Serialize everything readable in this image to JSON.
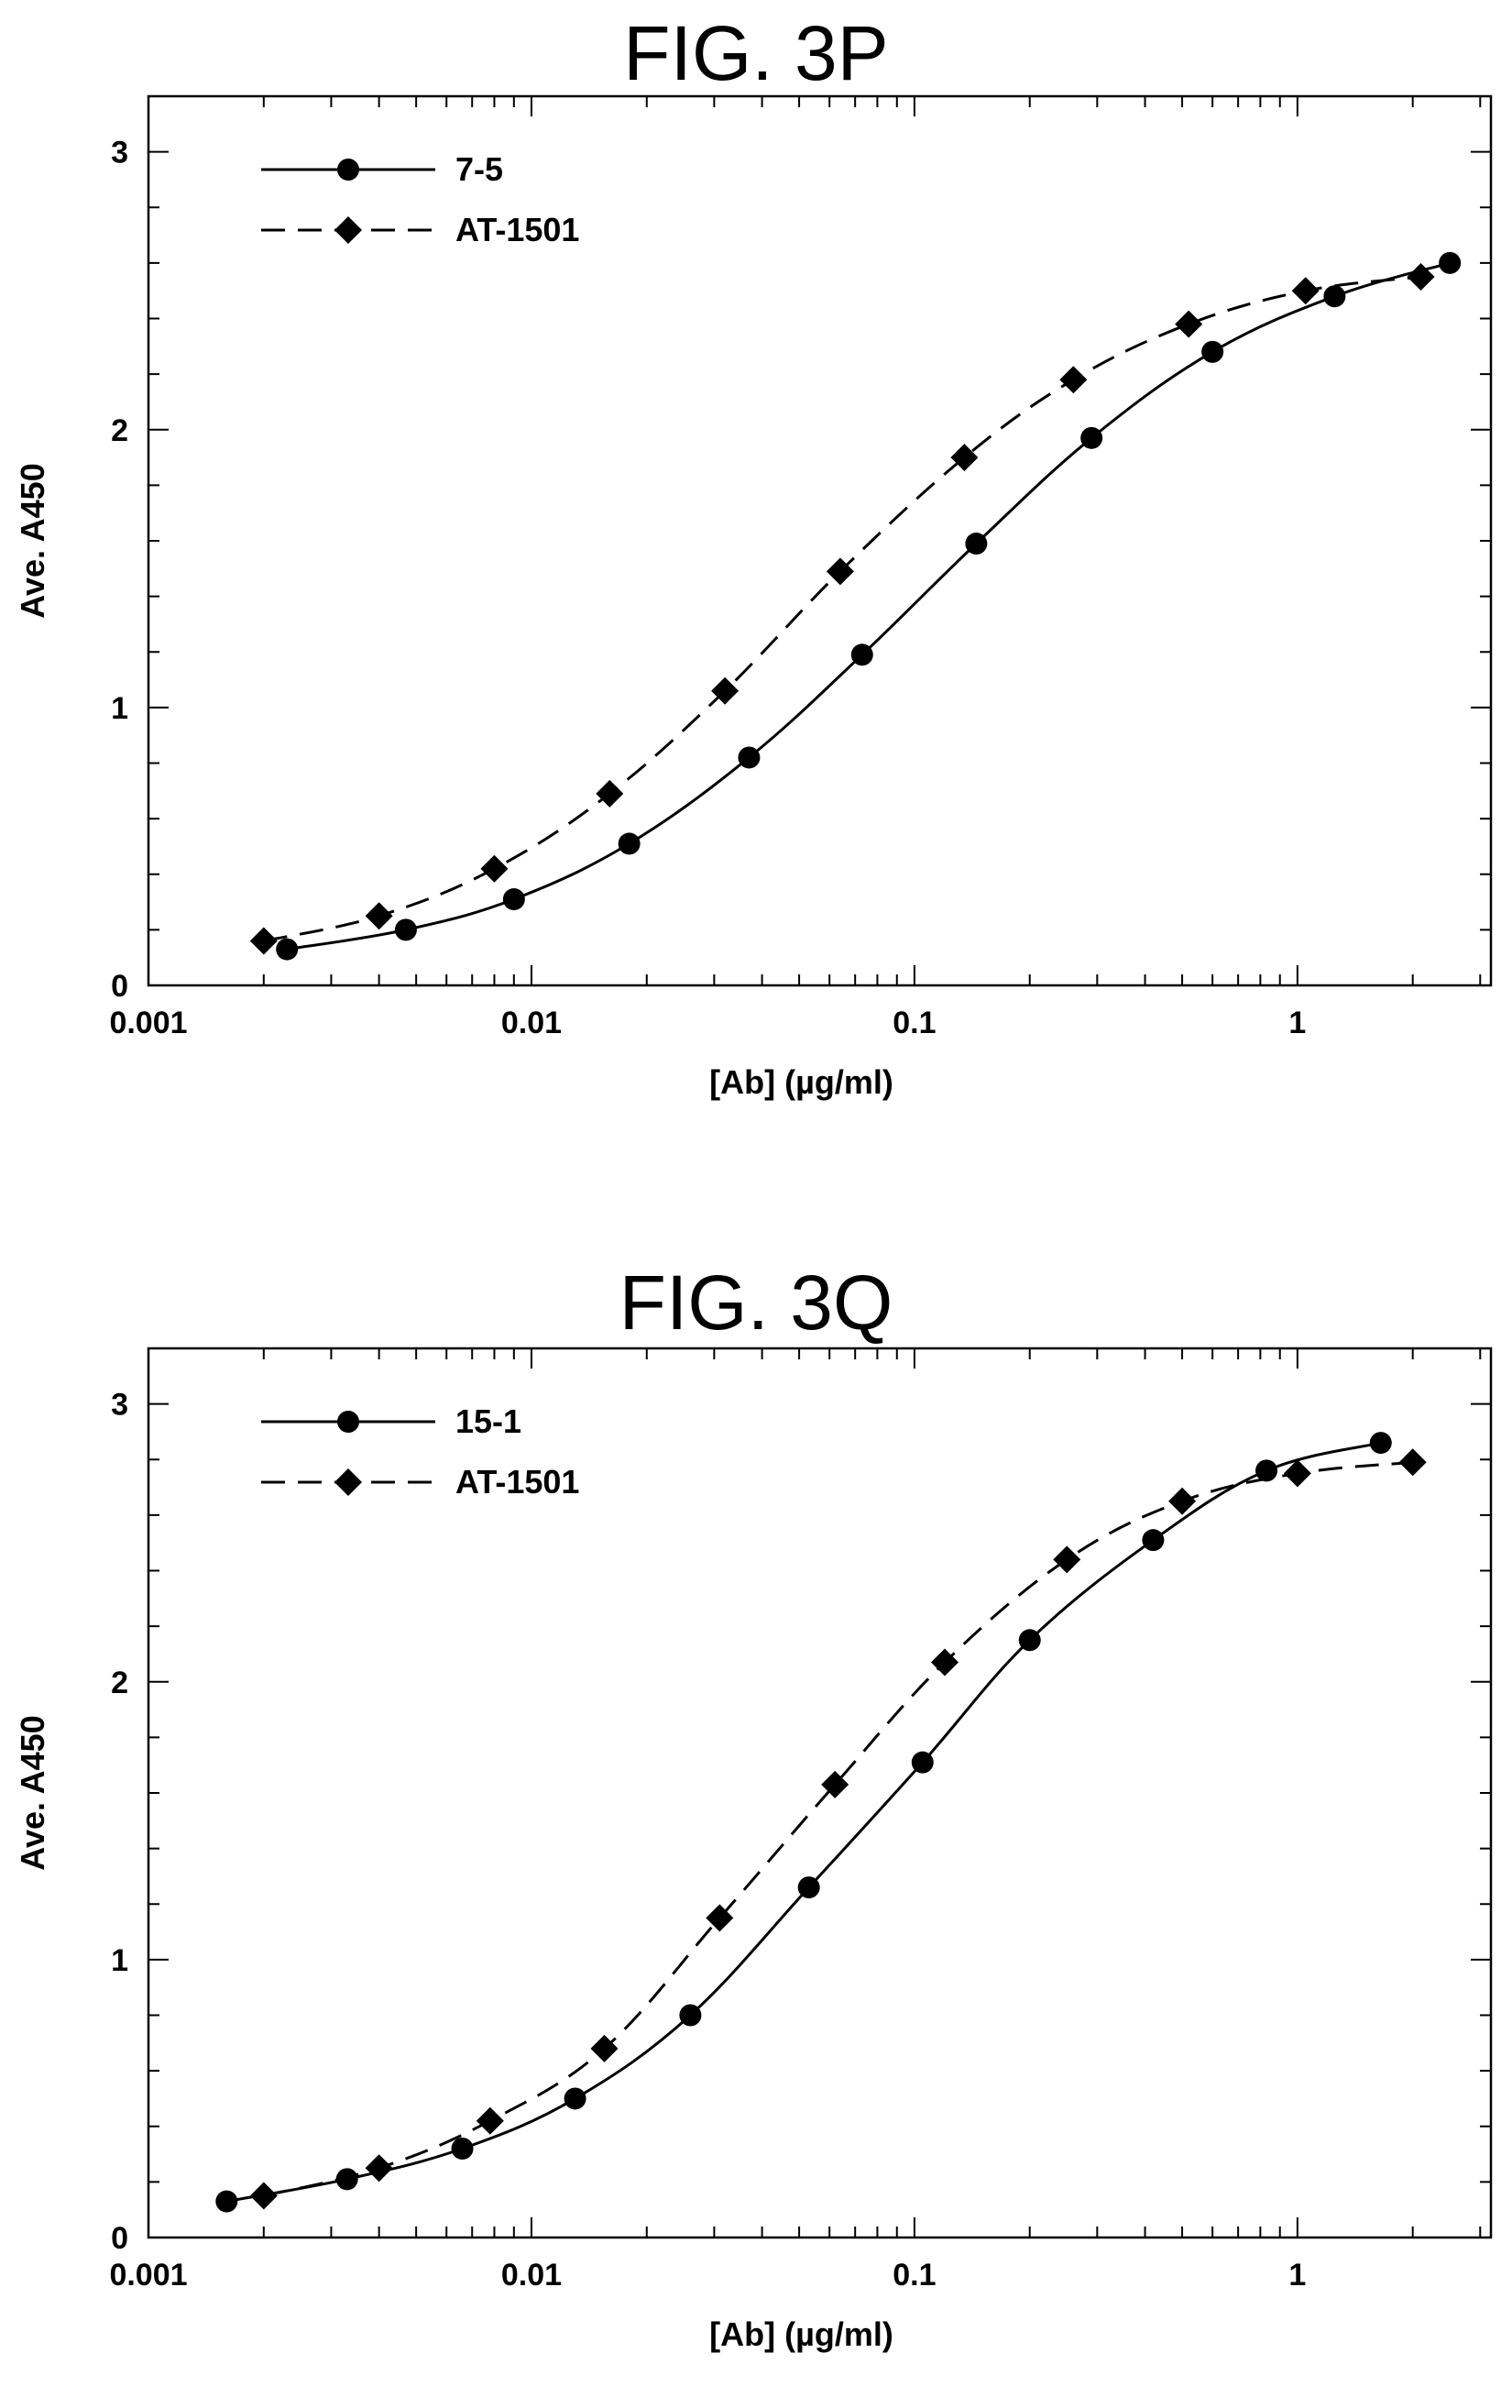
{
  "chart_data": [
    {
      "type": "line",
      "title": "FIG. 3P",
      "xlabel": "[Ab]  (µg/ml)",
      "ylabel": "Ave. A450",
      "xscale": "log",
      "xlim": [
        0.001,
        3.2
      ],
      "ylim": [
        0,
        3.2
      ],
      "xticks": [
        0.001,
        0.01,
        0.1,
        1
      ],
      "xtick_labels": [
        "0.001",
        "0.01",
        "0.1",
        "1"
      ],
      "yticks": [
        0,
        1,
        2,
        3
      ],
      "ytick_labels": [
        "0",
        "1",
        "2",
        "3"
      ],
      "legend_position": "top-left",
      "series": [
        {
          "name": "7-5",
          "marker": "circle",
          "line": "solid",
          "x": [
            0.0023,
            0.0047,
            0.009,
            0.018,
            0.037,
            0.073,
            0.145,
            0.29,
            0.6,
            1.25,
            2.5
          ],
          "y": [
            0.13,
            0.2,
            0.31,
            0.51,
            0.82,
            1.19,
            1.59,
            1.97,
            2.28,
            2.48,
            2.6
          ]
        },
        {
          "name": "AT-1501",
          "marker": "diamond",
          "line": "dashed",
          "x": [
            0.002,
            0.004,
            0.008,
            0.016,
            0.032,
            0.064,
            0.135,
            0.26,
            0.52,
            1.05,
            2.1
          ],
          "y": [
            0.16,
            0.25,
            0.42,
            0.69,
            1.06,
            1.49,
            1.9,
            2.18,
            2.38,
            2.5,
            2.55
          ]
        }
      ]
    },
    {
      "type": "line",
      "title": "FIG. 3Q",
      "xlabel": "[Ab]  (µg/ml)",
      "ylabel": "Ave. A450",
      "xscale": "log",
      "xlim": [
        0.001,
        3.2
      ],
      "ylim": [
        0,
        3.2
      ],
      "xticks": [
        0.001,
        0.01,
        0.1,
        1
      ],
      "xtick_labels": [
        "0.001",
        "0.01",
        "0.1",
        "1"
      ],
      "yticks": [
        0,
        1,
        2,
        3
      ],
      "ytick_labels": [
        "0",
        "1",
        "2",
        "3"
      ],
      "legend_position": "top-left",
      "series": [
        {
          "name": "15-1",
          "marker": "circle",
          "line": "solid",
          "x": [
            0.0016,
            0.0033,
            0.0066,
            0.013,
            0.026,
            0.053,
            0.105,
            0.2,
            0.42,
            0.83,
            1.65
          ],
          "y": [
            0.13,
            0.21,
            0.32,
            0.5,
            0.8,
            1.26,
            1.71,
            2.15,
            2.51,
            2.76,
            2.86
          ]
        },
        {
          "name": "AT-1501",
          "marker": "diamond",
          "line": "dashed",
          "x": [
            0.002,
            0.004,
            0.0078,
            0.0155,
            0.031,
            0.062,
            0.12,
            0.25,
            0.5,
            1.0,
            2.0
          ],
          "y": [
            0.15,
            0.25,
            0.42,
            0.68,
            1.15,
            1.63,
            2.07,
            2.44,
            2.65,
            2.75,
            2.79
          ]
        }
      ]
    }
  ]
}
